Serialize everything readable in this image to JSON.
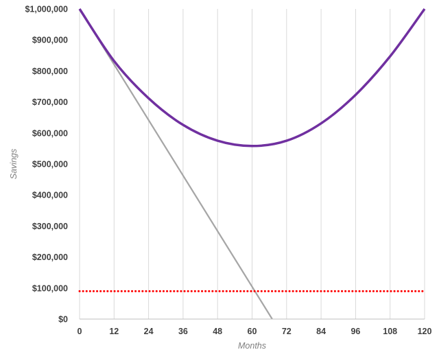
{
  "chart_data": {
    "type": "line",
    "xlabel": "Months",
    "ylabel": "Savings",
    "xlim": [
      0,
      120
    ],
    "ylim": [
      0,
      1000000
    ],
    "x_ticks": [
      "0",
      "12",
      "24",
      "36",
      "48",
      "60",
      "72",
      "84",
      "96",
      "108",
      "120"
    ],
    "y_ticks": [
      "$0",
      "$100,000",
      "$200,000",
      "$300,000",
      "$400,000",
      "$500,000",
      "$600,000",
      "$700,000",
      "$800,000",
      "$900,000",
      "$1,000,000"
    ],
    "grid": "vertical",
    "legend": "none",
    "series": [
      {
        "color": "#7030a0",
        "style": "solid",
        "x": [
          0,
          12,
          24,
          36,
          48,
          60,
          72,
          84,
          96,
          108,
          120
        ],
        "values": [
          1000000,
          832000,
          712000,
          626000,
          575000,
          558000,
          575000,
          631000,
          723000,
          847000,
          1000000
        ]
      },
      {
        "color": "#a6a6a6",
        "style": "solid",
        "x": [
          0,
          67
        ],
        "values": [
          1000000,
          0
        ]
      },
      {
        "color": "#ff0000",
        "style": "dotted",
        "x": [
          0,
          120
        ],
        "values": [
          90000,
          90000
        ]
      }
    ]
  }
}
